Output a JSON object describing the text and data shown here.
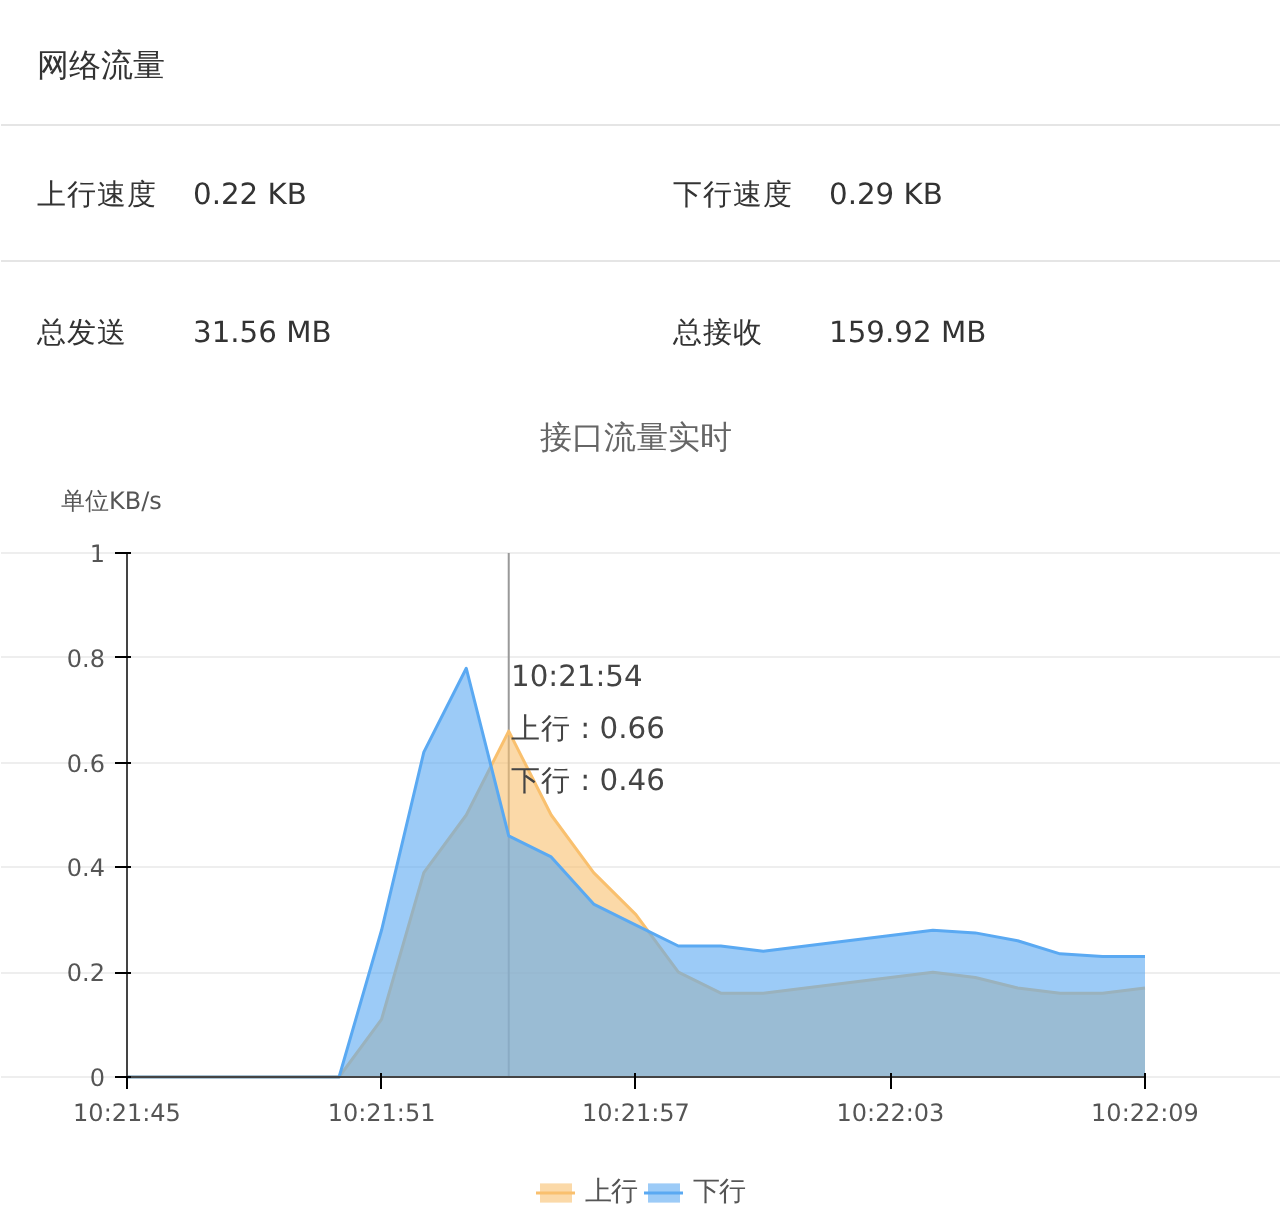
{
  "chart_data": [
    {
      "type": "other",
      "title": "网络流量",
      "annotations": [
        "上行速度",
        "0.22 KB",
        "下行速度",
        "0.29 KB",
        "总发送",
        "31.56 MB",
        "总接收",
        "159.92 MB"
      ]
    },
    {
      "type": "area",
      "title": "接口流量实时",
      "ylabel": "单位KB/s",
      "x": [
        10.3625,
        10.362778,
        10.363056,
        10.363333,
        10.363611,
        10.363889,
        10.364167,
        10.364444,
        10.364722,
        10.365,
        10.365278,
        10.365556,
        10.365833,
        10.366111,
        10.366389,
        10.366667,
        10.366944,
        10.367222,
        10.3675,
        10.367778,
        10.368056,
        10.368333,
        10.368611,
        10.368889,
        10.369167
      ],
      "series": [
        {
          "name": "上行",
          "color": "#f9c06e",
          "values": [
            0,
            0,
            0,
            0,
            0,
            0,
            0.11,
            0.39,
            0.5,
            0.66,
            0.5,
            0.39,
            0.31,
            0.2,
            0.16,
            0.16,
            0.17,
            0.18,
            0.19,
            0.2,
            0.19,
            0.17,
            0.16,
            0.16,
            0.17
          ]
        },
        {
          "name": "下行",
          "color": "#5aa9f2",
          "values": [
            0,
            0,
            0,
            0,
            0,
            0,
            0.28,
            0.62,
            0.78,
            0.46,
            0.42,
            0.33,
            0.29,
            0.25,
            0.25,
            0.24,
            0.25,
            0.26,
            0.27,
            0.28,
            0.275,
            0.26,
            0.235,
            0.23,
            0.23
          ]
        }
      ],
      "xlim": [
        10.3625,
        10.369167
      ],
      "xticks": [
        {
          "value": 10.3625,
          "label": "10:21:45"
        },
        {
          "value": 10.364167,
          "label": "10:21:51"
        },
        {
          "value": 10.365833,
          "label": "10:21:57"
        },
        {
          "value": 10.3675,
          "label": "10:22:03"
        },
        {
          "value": 10.369167,
          "label": "10:22:09"
        }
      ],
      "ylim": [
        0,
        1
      ],
      "yticks": [
        0,
        0.2,
        0.4,
        0.6,
        0.8,
        1
      ],
      "grid": "y",
      "legend": "bottom",
      "ref_lines": [
        {
          "axis": "x",
          "value": 10.365,
          "label": null,
          "color": "#999999"
        }
      ],
      "annotations": [
        "10:21:54",
        "上行 : 0.66",
        "下行 : 0.46"
      ]
    }
  ]
}
